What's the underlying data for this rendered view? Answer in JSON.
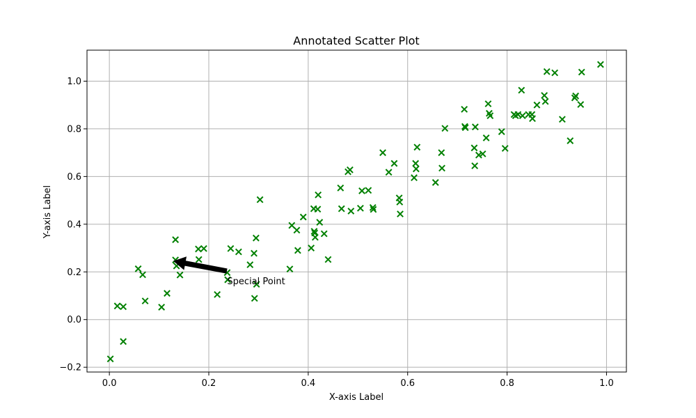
{
  "chart_data": {
    "type": "scatter",
    "title": "Annotated Scatter Plot",
    "xlabel": "X-axis Label",
    "ylabel": "Y-axis Label",
    "xlim": [
      -0.045,
      1.04
    ],
    "ylim": [
      -0.22,
      1.13
    ],
    "grid": true,
    "marker": "x",
    "color": "#008000",
    "xticks": [
      0.0,
      0.2,
      0.4,
      0.6,
      0.8,
      1.0
    ],
    "xtick_labels": [
      "0.0",
      "0.2",
      "0.4",
      "0.6",
      "0.8",
      "1.0"
    ],
    "yticks": [
      -0.2,
      0.0,
      0.2,
      0.4,
      0.6,
      0.8,
      1.0
    ],
    "ytick_labels": [
      "−0.2",
      "0.0",
      "0.2",
      "0.4",
      "0.6",
      "0.8",
      "1.0"
    ],
    "annotation": {
      "text": "Special Point",
      "xy": [
        0.13,
        0.245
      ],
      "xytext": [
        0.23,
        0.16
      ],
      "arrow_color": "#000000"
    },
    "points": [
      [
        0.002,
        -0.165
      ],
      [
        0.016,
        0.057
      ],
      [
        0.028,
        0.054
      ],
      [
        0.028,
        -0.092
      ],
      [
        0.058,
        0.213
      ],
      [
        0.067,
        0.188
      ],
      [
        0.072,
        0.078
      ],
      [
        0.105,
        0.052
      ],
      [
        0.116,
        0.11
      ],
      [
        0.133,
        0.335
      ],
      [
        0.133,
        0.25
      ],
      [
        0.135,
        0.225
      ],
      [
        0.142,
        0.187
      ],
      [
        0.179,
        0.296
      ],
      [
        0.18,
        0.252
      ],
      [
        0.19,
        0.298
      ],
      [
        0.217,
        0.105
      ],
      [
        0.237,
        0.197
      ],
      [
        0.238,
        0.167
      ],
      [
        0.244,
        0.298
      ],
      [
        0.26,
        0.284
      ],
      [
        0.283,
        0.23
      ],
      [
        0.291,
        0.278
      ],
      [
        0.292,
        0.089
      ],
      [
        0.295,
        0.342
      ],
      [
        0.296,
        0.148
      ],
      [
        0.303,
        0.503
      ],
      [
        0.363,
        0.212
      ],
      [
        0.367,
        0.395
      ],
      [
        0.377,
        0.375
      ],
      [
        0.379,
        0.29
      ],
      [
        0.39,
        0.43
      ],
      [
        0.406,
        0.3
      ],
      [
        0.411,
        0.465
      ],
      [
        0.412,
        0.37
      ],
      [
        0.413,
        0.363
      ],
      [
        0.414,
        0.345
      ],
      [
        0.419,
        0.463
      ],
      [
        0.42,
        0.523
      ],
      [
        0.423,
        0.408
      ],
      [
        0.432,
        0.36
      ],
      [
        0.44,
        0.252
      ],
      [
        0.465,
        0.552
      ],
      [
        0.467,
        0.465
      ],
      [
        0.48,
        0.62
      ],
      [
        0.484,
        0.628
      ],
      [
        0.486,
        0.455
      ],
      [
        0.505,
        0.467
      ],
      [
        0.508,
        0.54
      ],
      [
        0.521,
        0.542
      ],
      [
        0.53,
        0.47
      ],
      [
        0.531,
        0.462
      ],
      [
        0.55,
        0.7
      ],
      [
        0.562,
        0.618
      ],
      [
        0.573,
        0.655
      ],
      [
        0.583,
        0.51
      ],
      [
        0.584,
        0.493
      ],
      [
        0.585,
        0.443
      ],
      [
        0.613,
        0.595
      ],
      [
        0.616,
        0.655
      ],
      [
        0.617,
        0.632
      ],
      [
        0.619,
        0.723
      ],
      [
        0.656,
        0.575
      ],
      [
        0.668,
        0.7
      ],
      [
        0.669,
        0.635
      ],
      [
        0.675,
        0.802
      ],
      [
        0.714,
        0.882
      ],
      [
        0.715,
        0.81
      ],
      [
        0.716,
        0.805
      ],
      [
        0.734,
        0.72
      ],
      [
        0.735,
        0.645
      ],
      [
        0.736,
        0.808
      ],
      [
        0.743,
        0.69
      ],
      [
        0.751,
        0.695
      ],
      [
        0.758,
        0.762
      ],
      [
        0.762,
        0.905
      ],
      [
        0.764,
        0.865
      ],
      [
        0.766,
        0.855
      ],
      [
        0.789,
        0.788
      ],
      [
        0.796,
        0.718
      ],
      [
        0.814,
        0.86
      ],
      [
        0.817,
        0.855
      ],
      [
        0.822,
        0.86
      ],
      [
        0.829,
        0.962
      ],
      [
        0.831,
        0.855
      ],
      [
        0.843,
        0.86
      ],
      [
        0.85,
        0.86
      ],
      [
        0.851,
        0.843
      ],
      [
        0.86,
        0.9
      ],
      [
        0.875,
        0.94
      ],
      [
        0.877,
        0.915
      ],
      [
        0.88,
        1.04
      ],
      [
        0.896,
        1.035
      ],
      [
        0.911,
        0.84
      ],
      [
        0.927,
        0.75
      ],
      [
        0.936,
        0.93
      ],
      [
        0.938,
        0.938
      ],
      [
        0.948,
        0.902
      ],
      [
        0.95,
        1.038
      ],
      [
        0.988,
        1.07
      ]
    ]
  }
}
